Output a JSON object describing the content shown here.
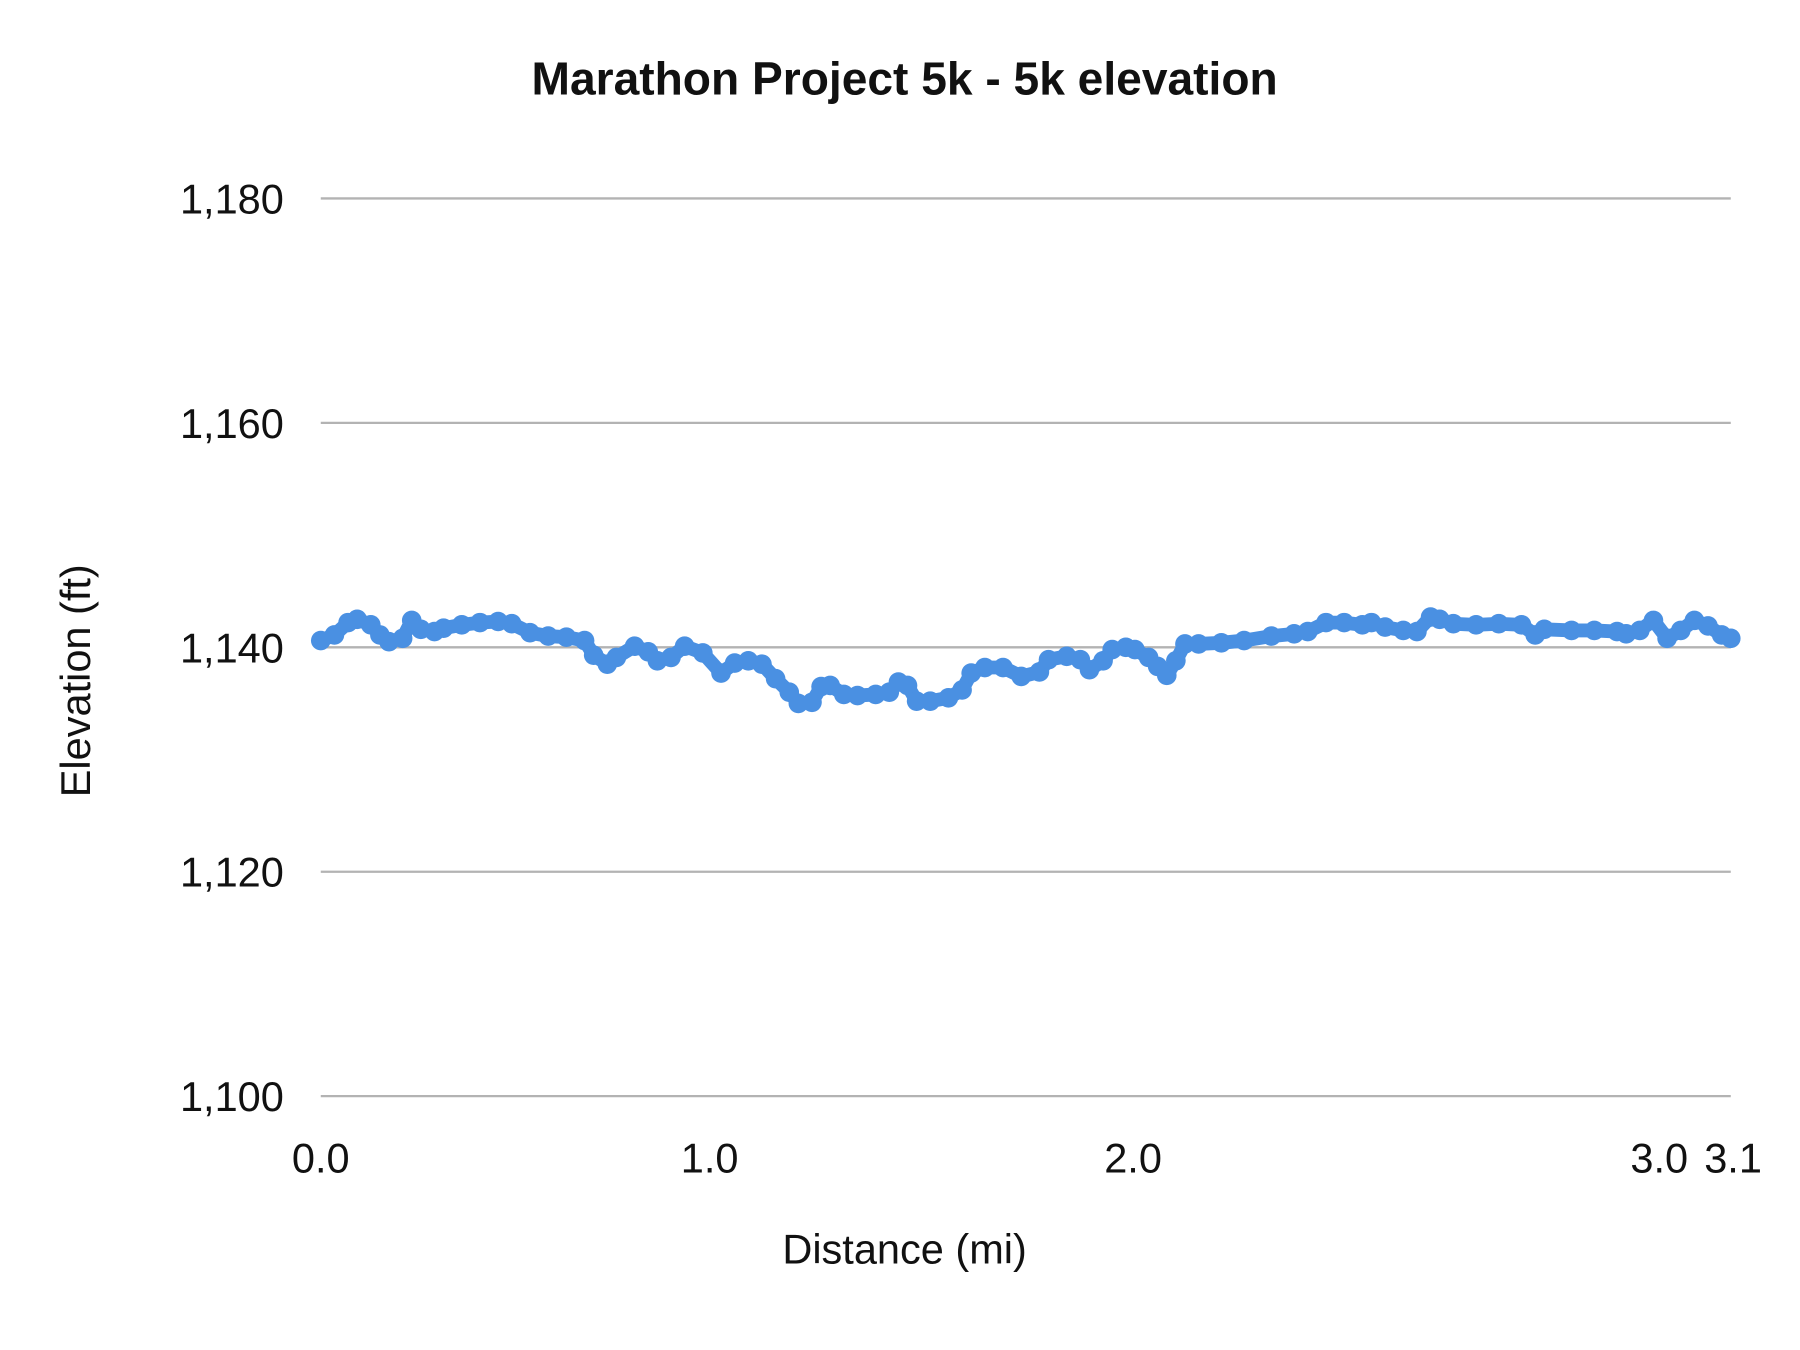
{
  "chart_data": {
    "type": "line",
    "title": "Marathon Project 5k - 5k elevation",
    "xlabel": "Distance (mi)",
    "ylabel": "Elevation (ft)",
    "ylim": [
      1100,
      1180
    ],
    "xlim": [
      0,
      3.1
    ],
    "y_ticks": [
      "1,100",
      "1,120",
      "1,140",
      "1,160",
      "1,180"
    ],
    "y_tick_values": [
      1100,
      1120,
      1140,
      1160,
      1180
    ],
    "x_ticks": [
      "0.0",
      "1.0",
      "2.0",
      "3.0",
      "3.1"
    ],
    "grid": "horizontal",
    "legend": "none",
    "markers": true,
    "color": "#4a90e2",
    "series": [
      {
        "x": [
          0,
          0.03,
          0.06,
          0.08,
          0.11,
          0.13,
          0.15,
          0.18,
          0.2,
          0.22,
          0.25,
          0.27,
          0.31,
          0.35,
          0.39,
          0.42,
          0.46,
          0.5,
          0.54,
          0.58,
          0.6,
          0.63,
          0.65,
          0.69,
          0.72,
          0.74,
          0.77,
          0.8,
          0.84,
          0.88,
          0.91,
          0.94,
          0.97,
          1.0,
          1.03,
          1.05,
          1.08,
          1.1,
          1.12,
          1.15,
          1.18,
          1.22,
          1.25,
          1.27,
          1.29,
          1.31,
          1.34,
          1.38,
          1.41,
          1.43,
          1.46,
          1.5,
          1.54,
          1.58,
          1.6,
          1.64,
          1.67,
          1.69,
          1.72,
          1.74,
          1.77,
          1.79,
          1.82,
          1.84,
          1.86,
          1.88,
          1.9,
          1.93,
          1.98,
          2.03,
          2.09,
          2.14,
          2.17,
          2.21,
          2.25,
          2.29,
          2.31,
          2.34,
          2.38,
          2.41,
          2.44,
          2.46,
          2.49,
          2.54,
          2.59,
          2.64,
          2.67,
          2.69,
          2.75,
          2.8,
          2.85,
          2.87,
          2.9,
          2.93,
          2.96,
          2.99,
          3.02,
          3.05,
          3.08,
          3.1
        ],
        "y": [
          1140.6,
          1141.1,
          1142.2,
          1142.5,
          1142.0,
          1141.1,
          1140.5,
          1140.8,
          1142.4,
          1141.6,
          1141.4,
          1141.7,
          1142.0,
          1142.2,
          1142.3,
          1142.1,
          1141.3,
          1141.0,
          1140.9,
          1140.6,
          1139.3,
          1138.5,
          1139.1,
          1140.1,
          1139.6,
          1138.8,
          1139.1,
          1140.1,
          1139.5,
          1137.7,
          1138.6,
          1138.8,
          1138.5,
          1137.2,
          1136.0,
          1135.0,
          1135.1,
          1136.5,
          1136.6,
          1135.8,
          1135.7,
          1135.8,
          1136.0,
          1136.9,
          1136.6,
          1135.2,
          1135.2,
          1135.5,
          1136.2,
          1137.7,
          1138.2,
          1138.2,
          1137.4,
          1137.8,
          1138.9,
          1139.2,
          1138.9,
          1138.0,
          1138.8,
          1139.8,
          1140.0,
          1139.8,
          1139.1,
          1138.3,
          1137.5,
          1138.8,
          1140.3,
          1140.3,
          1140.4,
          1140.6,
          1141.0,
          1141.2,
          1141.4,
          1142.2,
          1142.2,
          1142.0,
          1142.2,
          1141.8,
          1141.5,
          1141.4,
          1142.7,
          1142.5,
          1142.1,
          1142.0,
          1142.1,
          1142.0,
          1141.1,
          1141.6,
          1141.5,
          1141.5,
          1141.4,
          1141.2,
          1141.5,
          1142.4,
          1140.8,
          1141.5,
          1142.4,
          1141.9,
          1141.1,
          1140.8
        ]
      }
    ]
  }
}
